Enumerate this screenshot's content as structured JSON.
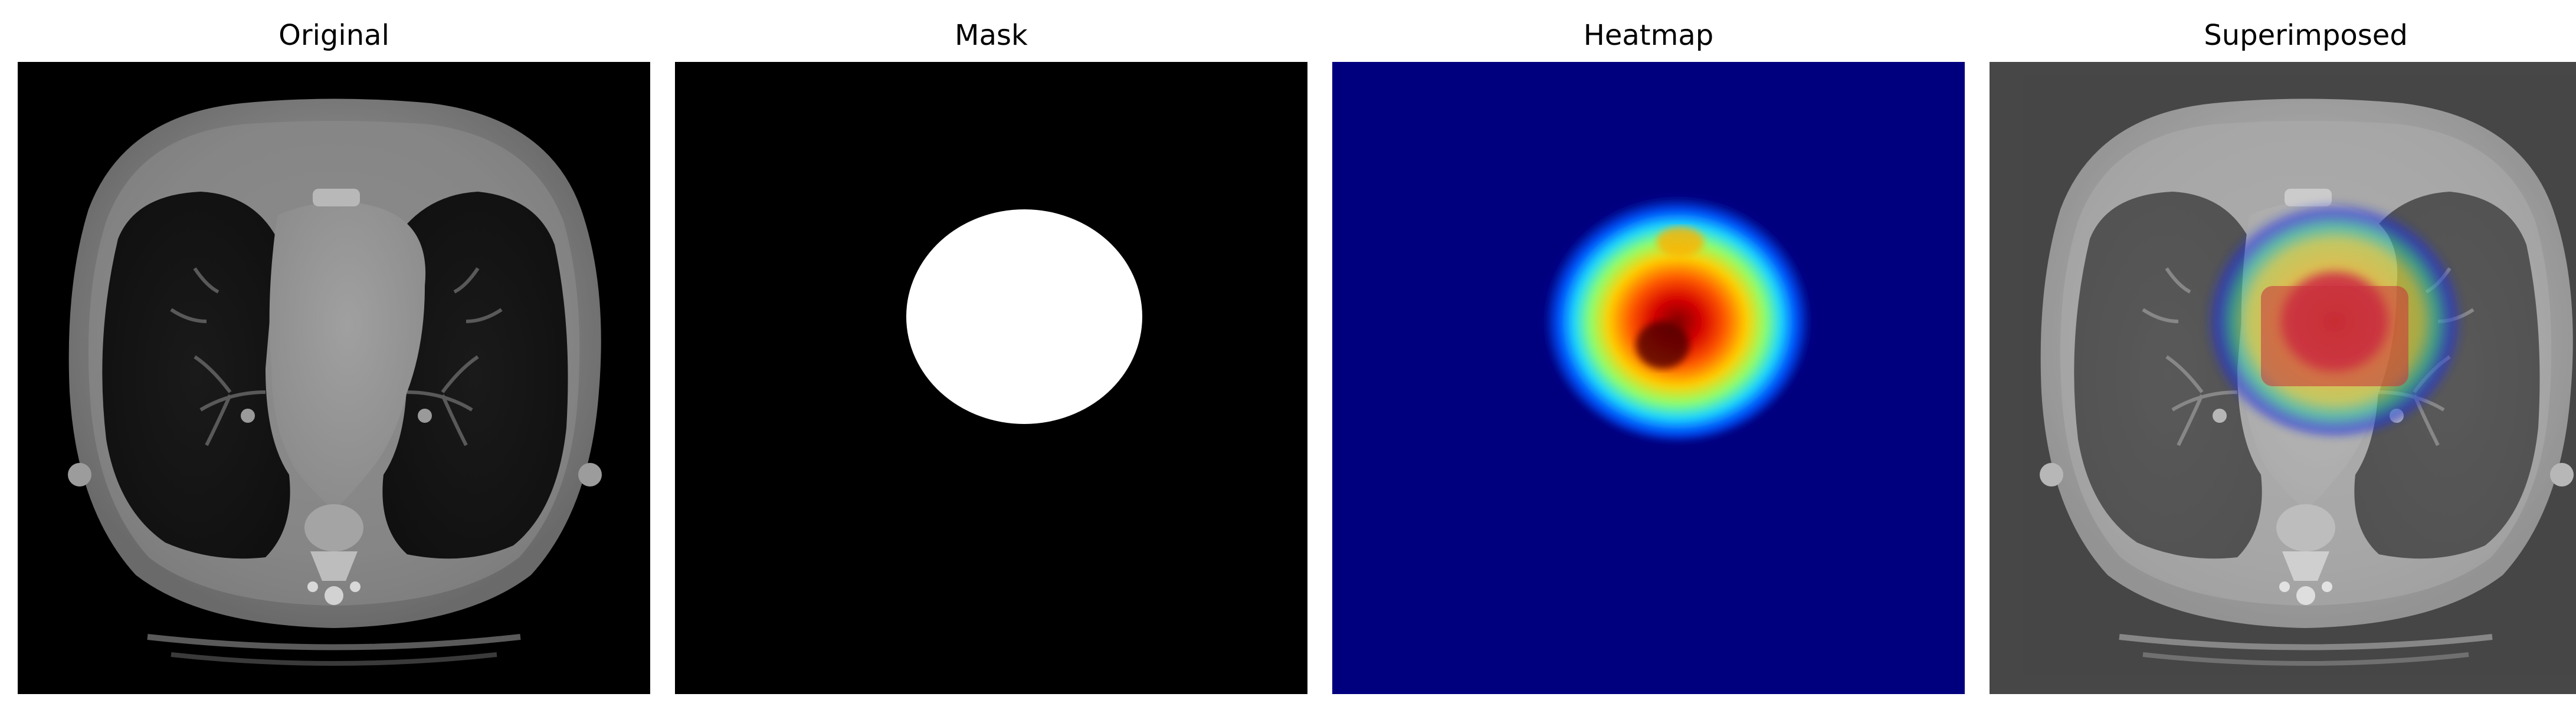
{
  "panels": [
    {
      "title": "Original"
    },
    {
      "title": "Mask"
    },
    {
      "title": "Heatmap"
    },
    {
      "title": "Superimposed"
    }
  ],
  "colors": {
    "background": "#ffffff",
    "mask_background": "#000000",
    "mask_foreground": "#ffffff",
    "heatmap_background": "#00007f",
    "heatmap_colormap": "jet"
  }
}
